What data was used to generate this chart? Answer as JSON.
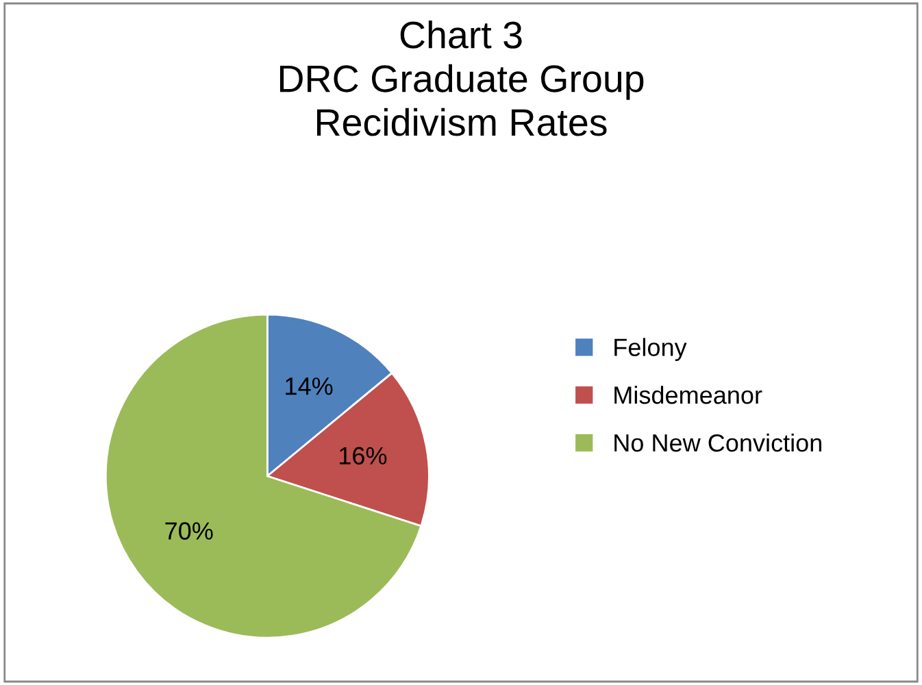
{
  "chart_data": {
    "type": "pie",
    "title": "Chart 3\nDRC Graduate Group\nRecidivism Rates",
    "categories": [
      "Felony",
      "Misdemeanor",
      "No New Conviction"
    ],
    "values": [
      14,
      16,
      70
    ],
    "colors": [
      "#4f81bd",
      "#c0504d",
      "#9bbb59"
    ],
    "value_labels": [
      "14%",
      "16%",
      "70%"
    ],
    "legend": "right"
  }
}
